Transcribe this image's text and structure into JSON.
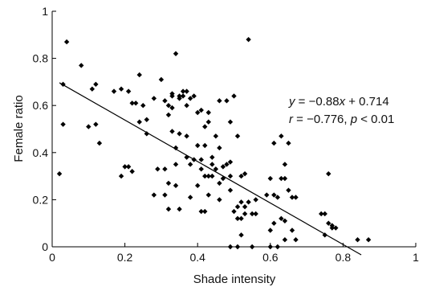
{
  "chart_data": {
    "type": "scatter",
    "xlabel": "Shade intensity",
    "ylabel": "Female ratio",
    "xlim": [
      0,
      1
    ],
    "ylim": [
      0,
      1
    ],
    "xticks": [
      0,
      0.2,
      0.4,
      0.6,
      0.8,
      1
    ],
    "xtick_labels": [
      "0",
      "0.2",
      "0.4",
      "0.6",
      "0.8",
      "1"
    ],
    "yticks": [
      0,
      0.2,
      0.4,
      0.6,
      0.8,
      1
    ],
    "ytick_labels": [
      "0",
      "0.2",
      "0.4",
      "0.6",
      "0.8",
      "1"
    ],
    "grid": false,
    "marker": "diamond",
    "marker_color": "#000000",
    "regression": {
      "slope": -0.88,
      "intercept": 0.714,
      "x_range": [
        0.02,
        0.85
      ]
    },
    "annotation": {
      "eq_y": "y",
      "eq_equals_minus": " = −0.88",
      "eq_x": "x",
      "eq_tail": " + 0.714",
      "r_label": "r",
      "r_value": " = −0.776, ",
      "p_label": "p",
      "p_value": " < 0.01"
    },
    "points": [
      [
        0.02,
        0.31
      ],
      [
        0.03,
        0.69
      ],
      [
        0.03,
        0.52
      ],
      [
        0.04,
        0.87
      ],
      [
        0.08,
        0.77
      ],
      [
        0.1,
        0.51
      ],
      [
        0.11,
        0.67
      ],
      [
        0.12,
        0.69
      ],
      [
        0.12,
        0.52
      ],
      [
        0.13,
        0.44
      ],
      [
        0.17,
        0.66
      ],
      [
        0.19,
        0.67
      ],
      [
        0.19,
        0.3
      ],
      [
        0.2,
        0.34
      ],
      [
        0.21,
        0.66
      ],
      [
        0.21,
        0.34
      ],
      [
        0.22,
        0.61
      ],
      [
        0.22,
        0.32
      ],
      [
        0.23,
        0.61
      ],
      [
        0.24,
        0.73
      ],
      [
        0.24,
        0.53
      ],
      [
        0.25,
        0.6
      ],
      [
        0.26,
        0.54
      ],
      [
        0.26,
        0.48
      ],
      [
        0.28,
        0.63
      ],
      [
        0.28,
        0.22
      ],
      [
        0.29,
        0.33
      ],
      [
        0.3,
        0.71
      ],
      [
        0.31,
        0.62
      ],
      [
        0.31,
        0.22
      ],
      [
        0.31,
        0.33
      ],
      [
        0.32,
        0.6
      ],
      [
        0.32,
        0.56
      ],
      [
        0.32,
        0.27
      ],
      [
        0.32,
        0.16
      ],
      [
        0.33,
        0.65
      ],
      [
        0.33,
        0.64
      ],
      [
        0.33,
        0.59
      ],
      [
        0.33,
        0.49
      ],
      [
        0.34,
        0.82
      ],
      [
        0.34,
        0.42
      ],
      [
        0.34,
        0.35
      ],
      [
        0.34,
        0.26
      ],
      [
        0.35,
        0.64
      ],
      [
        0.35,
        0.63
      ],
      [
        0.35,
        0.48
      ],
      [
        0.35,
        0.16
      ],
      [
        0.36,
        0.66
      ],
      [
        0.36,
        0.64
      ],
      [
        0.37,
        0.66
      ],
      [
        0.37,
        0.6
      ],
      [
        0.37,
        0.47
      ],
      [
        0.37,
        0.38
      ],
      [
        0.38,
        0.63
      ],
      [
        0.38,
        0.35
      ],
      [
        0.38,
        0.21
      ],
      [
        0.39,
        0.64
      ],
      [
        0.39,
        0.37
      ],
      [
        0.4,
        0.57
      ],
      [
        0.4,
        0.43
      ],
      [
        0.4,
        0.26
      ],
      [
        0.41,
        0.58
      ],
      [
        0.41,
        0.37
      ],
      [
        0.41,
        0.33
      ],
      [
        0.41,
        0.15
      ],
      [
        0.42,
        0.51
      ],
      [
        0.42,
        0.43
      ],
      [
        0.42,
        0.3
      ],
      [
        0.42,
        0.15
      ],
      [
        0.43,
        0.57
      ],
      [
        0.43,
        0.53
      ],
      [
        0.43,
        0.3
      ],
      [
        0.43,
        0.22
      ],
      [
        0.44,
        0.38
      ],
      [
        0.44,
        0.35
      ],
      [
        0.44,
        0.3
      ],
      [
        0.45,
        0.47
      ],
      [
        0.45,
        0.33
      ],
      [
        0.46,
        0.62
      ],
      [
        0.46,
        0.42
      ],
      [
        0.46,
        0.27
      ],
      [
        0.46,
        0.2
      ],
      [
        0.47,
        0.34
      ],
      [
        0.47,
        0.29
      ],
      [
        0.48,
        0.62
      ],
      [
        0.48,
        0.35
      ],
      [
        0.49,
        0.53
      ],
      [
        0.49,
        0.36
      ],
      [
        0.49,
        0.3
      ],
      [
        0.49,
        0.24
      ],
      [
        0.49,
        0.0
      ],
      [
        0.5,
        0.64
      ],
      [
        0.5,
        0.15
      ],
      [
        0.51,
        0.47
      ],
      [
        0.51,
        0.17
      ],
      [
        0.51,
        0.12
      ],
      [
        0.51,
        0.0
      ],
      [
        0.52,
        0.3
      ],
      [
        0.52,
        0.19
      ],
      [
        0.52,
        0.12
      ],
      [
        0.52,
        0.05
      ],
      [
        0.53,
        0.31
      ],
      [
        0.53,
        0.17
      ],
      [
        0.53,
        0.14
      ],
      [
        0.54,
        0.88
      ],
      [
        0.54,
        0.19
      ],
      [
        0.55,
        0.14
      ],
      [
        0.55,
        0.0
      ],
      [
        0.56,
        0.2
      ],
      [
        0.56,
        0.14
      ],
      [
        0.59,
        0.22
      ],
      [
        0.6,
        0.29
      ],
      [
        0.6,
        0.07
      ],
      [
        0.6,
        0.0
      ],
      [
        0.61,
        0.44
      ],
      [
        0.61,
        0.22
      ],
      [
        0.61,
        0.1
      ],
      [
        0.62,
        0.21
      ],
      [
        0.62,
        0.0
      ],
      [
        0.63,
        0.47
      ],
      [
        0.63,
        0.29
      ],
      [
        0.63,
        0.12
      ],
      [
        0.64,
        0.35
      ],
      [
        0.64,
        0.29
      ],
      [
        0.64,
        0.11
      ],
      [
        0.64,
        0.03
      ],
      [
        0.65,
        0.44
      ],
      [
        0.65,
        0.24
      ],
      [
        0.66,
        0.21
      ],
      [
        0.66,
        0.07
      ],
      [
        0.67,
        0.21
      ],
      [
        0.67,
        0.03
      ],
      [
        0.74,
        0.14
      ],
      [
        0.75,
        0.05
      ],
      [
        0.75,
        0.14
      ],
      [
        0.76,
        0.31
      ],
      [
        0.76,
        0.1
      ],
      [
        0.77,
        0.09
      ],
      [
        0.77,
        0.08
      ],
      [
        0.78,
        0.08
      ],
      [
        0.84,
        0.03
      ],
      [
        0.87,
        0.03
      ]
    ]
  }
}
